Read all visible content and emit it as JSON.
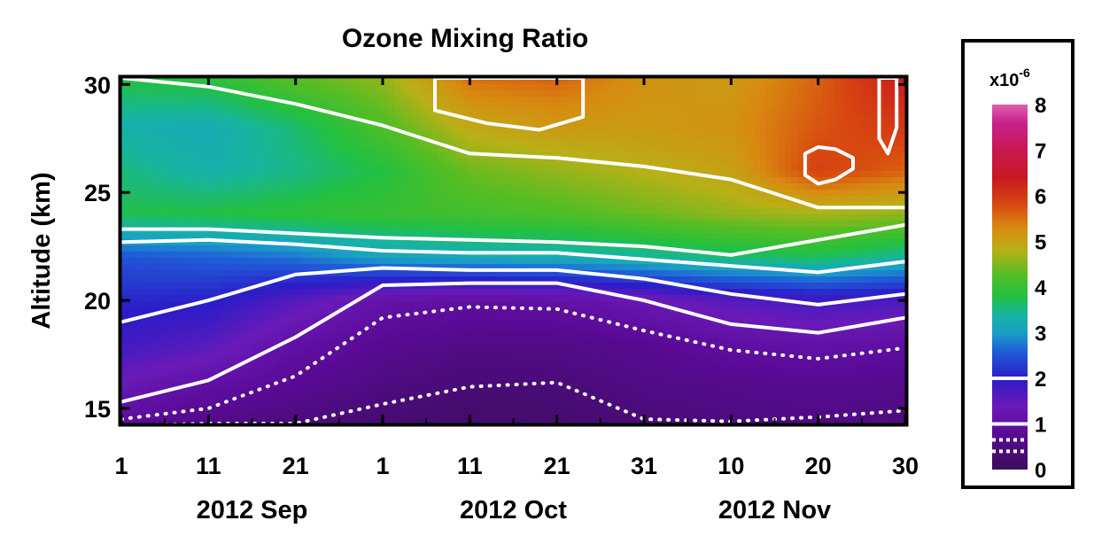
{
  "chart_data": {
    "type": "heatmap",
    "title": "Ozone Mixing Ratio",
    "ylabel": "Altitude (km)",
    "xlabel": "",
    "y_range": [
      14.3,
      30.3
    ],
    "y_ticks": [
      {
        "value": 15,
        "label": "15"
      },
      {
        "value": 20,
        "label": "20"
      },
      {
        "value": 25,
        "label": "25"
      },
      {
        "value": 30,
        "label": "30"
      }
    ],
    "x_range_days": [
      0,
      90
    ],
    "x_ticks": [
      {
        "day": 0,
        "label": "1"
      },
      {
        "day": 10,
        "label": "11"
      },
      {
        "day": 20,
        "label": "21"
      },
      {
        "day": 30,
        "label": "1"
      },
      {
        "day": 40,
        "label": "11"
      },
      {
        "day": 50,
        "label": "21"
      },
      {
        "day": 60,
        "label": "31"
      },
      {
        "day": 70,
        "label": "10"
      },
      {
        "day": 80,
        "label": "20"
      },
      {
        "day": 90,
        "label": "30"
      }
    ],
    "month_labels": [
      {
        "label": "2012 Sep",
        "center_day": 15
      },
      {
        "label": "2012 Oct",
        "center_day": 45
      },
      {
        "label": "2012 Nov",
        "center_day": 75
      }
    ],
    "colorbar": {
      "unit_base": "x10",
      "unit_exponent": "-6",
      "min": 0,
      "max": 8,
      "labels": [
        "0",
        "1",
        "2",
        "3",
        "4",
        "5",
        "6",
        "7",
        "8"
      ],
      "stops": [
        {
          "v": 0.0,
          "c": "#3a0d5a"
        },
        {
          "v": 0.8,
          "c": "#5a0a96"
        },
        {
          "v": 1.4,
          "c": "#6a1ab8"
        },
        {
          "v": 2.0,
          "c": "#2b1cc8"
        },
        {
          "v": 2.6,
          "c": "#1f5fd8"
        },
        {
          "v": 3.0,
          "c": "#1a9fc8"
        },
        {
          "v": 3.4,
          "c": "#16b4a0"
        },
        {
          "v": 3.8,
          "c": "#22c040"
        },
        {
          "v": 4.3,
          "c": "#58bd22"
        },
        {
          "v": 4.8,
          "c": "#b8b016"
        },
        {
          "v": 5.3,
          "c": "#d88a10"
        },
        {
          "v": 5.8,
          "c": "#d84810"
        },
        {
          "v": 6.4,
          "c": "#c81820"
        },
        {
          "v": 7.0,
          "c": "#c81850"
        },
        {
          "v": 7.6,
          "c": "#c8208c"
        },
        {
          "v": 8.0,
          "c": "#e060b0"
        }
      ],
      "contour_marks": [
        {
          "value": 0.4,
          "style": "dotted"
        },
        {
          "value": 0.65,
          "style": "dotted"
        },
        {
          "value": 1.0,
          "style": "solid"
        },
        {
          "value": 2.0,
          "style": "solid"
        }
      ]
    },
    "contours": {
      "x_days": [
        0,
        10,
        20,
        30,
        40,
        50,
        60,
        70,
        80,
        90
      ],
      "lines": [
        {
          "value": 0.4,
          "style": "dotted",
          "y": [
            14.2,
            14.3,
            14.3,
            15.2,
            16.0,
            16.2,
            14.5,
            14.4,
            14.6,
            14.9
          ]
        },
        {
          "value": 0.65,
          "style": "dotted",
          "y": [
            14.5,
            15.0,
            16.5,
            19.2,
            19.7,
            19.6,
            18.6,
            17.7,
            17.3,
            17.8
          ]
        },
        {
          "value": 1.0,
          "style": "solid",
          "y": [
            15.3,
            16.3,
            18.3,
            20.7,
            20.8,
            20.8,
            20.0,
            18.9,
            18.5,
            19.2
          ]
        },
        {
          "value": 2.0,
          "style": "solid",
          "y": [
            19.0,
            20.0,
            21.2,
            21.5,
            21.4,
            21.4,
            21.0,
            20.3,
            19.8,
            20.3
          ]
        },
        {
          "value": 3.0,
          "style": "solid",
          "y": [
            22.7,
            22.8,
            22.6,
            22.3,
            22.2,
            22.2,
            21.9,
            21.6,
            21.3,
            21.8
          ]
        },
        {
          "value": 3.6,
          "style": "solid",
          "y": [
            23.3,
            23.3,
            23.1,
            22.9,
            22.8,
            22.7,
            22.5,
            22.1,
            22.8,
            23.5
          ]
        },
        {
          "value": 4.7,
          "style": "solid",
          "y": [
            30.3,
            29.9,
            29.1,
            28.1,
            26.8,
            26.6,
            26.2,
            25.6,
            24.3,
            24.3
          ]
        }
      ],
      "closed": [
        {
          "value": 5.3,
          "days": [
            36,
            42,
            48,
            53
          ],
          "tops": [
            30.3,
            30.3,
            30.3,
            30.3
          ],
          "bottoms": [
            28.8,
            28.2,
            27.9,
            28.5
          ]
        },
        {
          "value": 6.0,
          "days": [
            78.5,
            80,
            82,
            84
          ],
          "tops": [
            26.8,
            27.1,
            27.0,
            26.6
          ],
          "bottoms": [
            25.8,
            25.4,
            25.6,
            26.1
          ]
        },
        {
          "value": 6.5,
          "days": [
            87,
            88,
            89
          ],
          "tops": [
            30.3,
            30.3,
            30.3
          ],
          "bottoms": [
            27.5,
            26.8,
            28.0
          ]
        }
      ]
    },
    "field": {
      "x_days": [
        0,
        10,
        20,
        30,
        40,
        50,
        60,
        70,
        80,
        90
      ],
      "y_km": [
        14.3,
        16,
        18,
        20,
        22,
        24,
        26,
        28,
        30.3
      ],
      "values": [
        [
          0.9,
          0.6,
          0.45,
          0.3,
          0.2,
          0.25,
          0.4,
          0.5,
          0.55,
          0.5
        ],
        [
          1.3,
          1.0,
          0.75,
          0.5,
          0.35,
          0.4,
          0.55,
          0.65,
          0.7,
          0.65
        ],
        [
          1.8,
          1.6,
          1.05,
          0.75,
          0.6,
          0.6,
          0.75,
          1.0,
          1.1,
          1.0
        ],
        [
          2.1,
          2.05,
          1.6,
          1.1,
          1.0,
          1.05,
          1.3,
          1.6,
          1.8,
          1.7
        ],
        [
          2.5,
          2.6,
          2.75,
          3.1,
          3.2,
          3.25,
          3.4,
          3.6,
          3.7,
          3.4
        ],
        [
          3.75,
          3.8,
          3.9,
          4.0,
          4.1,
          4.2,
          4.4,
          4.6,
          4.7,
          4.6
        ],
        [
          3.55,
          3.3,
          3.5,
          3.8,
          4.4,
          4.6,
          4.8,
          5.0,
          5.9,
          5.6
        ],
        [
          3.3,
          3.2,
          3.6,
          4.2,
          4.9,
          5.1,
          5.1,
          5.2,
          5.7,
          6.0
        ],
        [
          3.8,
          3.9,
          4.3,
          4.6,
          5.5,
          5.6,
          5.2,
          5.1,
          5.6,
          6.4
        ]
      ]
    }
  }
}
